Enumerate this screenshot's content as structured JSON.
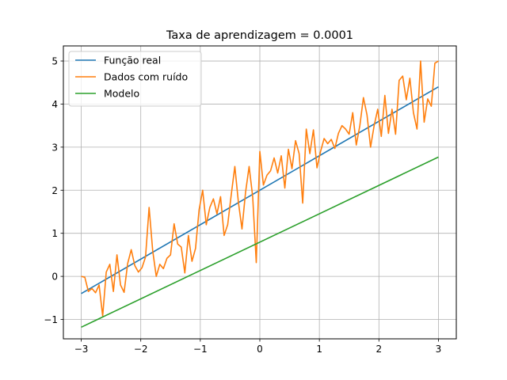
{
  "chart_data": {
    "type": "line",
    "title": "Taxa de aprendizagem = 0.0001",
    "xlabel": "",
    "ylabel": "",
    "xlim": [
      -3.3,
      3.3
    ],
    "ylim": [
      -1.45,
      5.35
    ],
    "xticks": [
      -3,
      -2,
      -1,
      0,
      1,
      2,
      3
    ],
    "xtick_labels": [
      "−3",
      "−2",
      "−1",
      "0",
      "1",
      "2",
      "3"
    ],
    "yticks": [
      -1,
      0,
      1,
      2,
      3,
      4,
      5
    ],
    "ytick_labels": [
      "−1",
      "0",
      "1",
      "2",
      "3",
      "4",
      "5"
    ],
    "grid": true,
    "legend_position": "top-left",
    "series": [
      {
        "name": "Função real",
        "color": "#1f77b4",
        "x": [
          -3,
          3
        ],
        "y": [
          -0.4,
          4.4
        ]
      },
      {
        "name": "Dados com ruído",
        "color": "#ff7f0e",
        "x": [
          -3.0,
          -2.94,
          -2.88,
          -2.82,
          -2.76,
          -2.7,
          -2.64,
          -2.58,
          -2.52,
          -2.46,
          -2.4,
          -2.34,
          -2.28,
          -2.22,
          -2.16,
          -2.1,
          -2.04,
          -1.98,
          -1.92,
          -1.86,
          -1.8,
          -1.74,
          -1.68,
          -1.62,
          -1.56,
          -1.5,
          -1.44,
          -1.38,
          -1.32,
          -1.26,
          -1.2,
          -1.14,
          -1.08,
          -1.02,
          -0.96,
          -0.9,
          -0.84,
          -0.78,
          -0.72,
          -0.66,
          -0.6,
          -0.54,
          -0.48,
          -0.42,
          -0.36,
          -0.3,
          -0.24,
          -0.18,
          -0.12,
          -0.06,
          0.0,
          0.06,
          0.12,
          0.18,
          0.24,
          0.3,
          0.36,
          0.42,
          0.48,
          0.54,
          0.6,
          0.66,
          0.72,
          0.78,
          0.84,
          0.9,
          0.96,
          1.02,
          1.08,
          1.14,
          1.2,
          1.26,
          1.32,
          1.38,
          1.44,
          1.5,
          1.56,
          1.62,
          1.68,
          1.74,
          1.8,
          1.86,
          1.92,
          1.98,
          2.04,
          2.1,
          2.16,
          2.22,
          2.28,
          2.34,
          2.4,
          2.46,
          2.52,
          2.58,
          2.64,
          2.7,
          2.76,
          2.82,
          2.88,
          2.94,
          3.0
        ],
        "y": [
          0.0,
          -0.02,
          -0.35,
          -0.28,
          -0.38,
          -0.2,
          -0.92,
          0.1,
          0.28,
          -0.35,
          0.5,
          -0.2,
          -0.37,
          0.3,
          0.62,
          0.25,
          0.1,
          0.2,
          0.45,
          1.6,
          0.6,
          0.0,
          0.28,
          0.18,
          0.42,
          0.5,
          1.22,
          0.75,
          0.68,
          0.08,
          0.95,
          0.35,
          0.65,
          1.55,
          2.0,
          1.2,
          1.6,
          1.8,
          1.45,
          1.85,
          0.95,
          1.2,
          1.9,
          2.55,
          1.72,
          1.1,
          1.95,
          2.55,
          1.85,
          0.32,
          2.9,
          2.12,
          2.35,
          2.45,
          2.75,
          2.4,
          2.8,
          2.05,
          2.95,
          2.5,
          3.15,
          2.85,
          1.7,
          3.42,
          2.85,
          3.4,
          2.52,
          2.9,
          3.2,
          3.08,
          3.18,
          2.97,
          3.32,
          3.5,
          3.42,
          3.3,
          3.8,
          3.05,
          3.5,
          4.15,
          3.75,
          3.0,
          3.5,
          3.88,
          3.25,
          4.2,
          3.32,
          3.88,
          3.3,
          4.55,
          4.65,
          4.1,
          4.6,
          3.8,
          3.42,
          5.0,
          3.58,
          4.12,
          3.95,
          4.95,
          5.0
        ]
      },
      {
        "name": "Modelo",
        "color": "#2ca02c",
        "x": [
          -3,
          3
        ],
        "y": [
          -1.18,
          2.77
        ]
      }
    ]
  }
}
